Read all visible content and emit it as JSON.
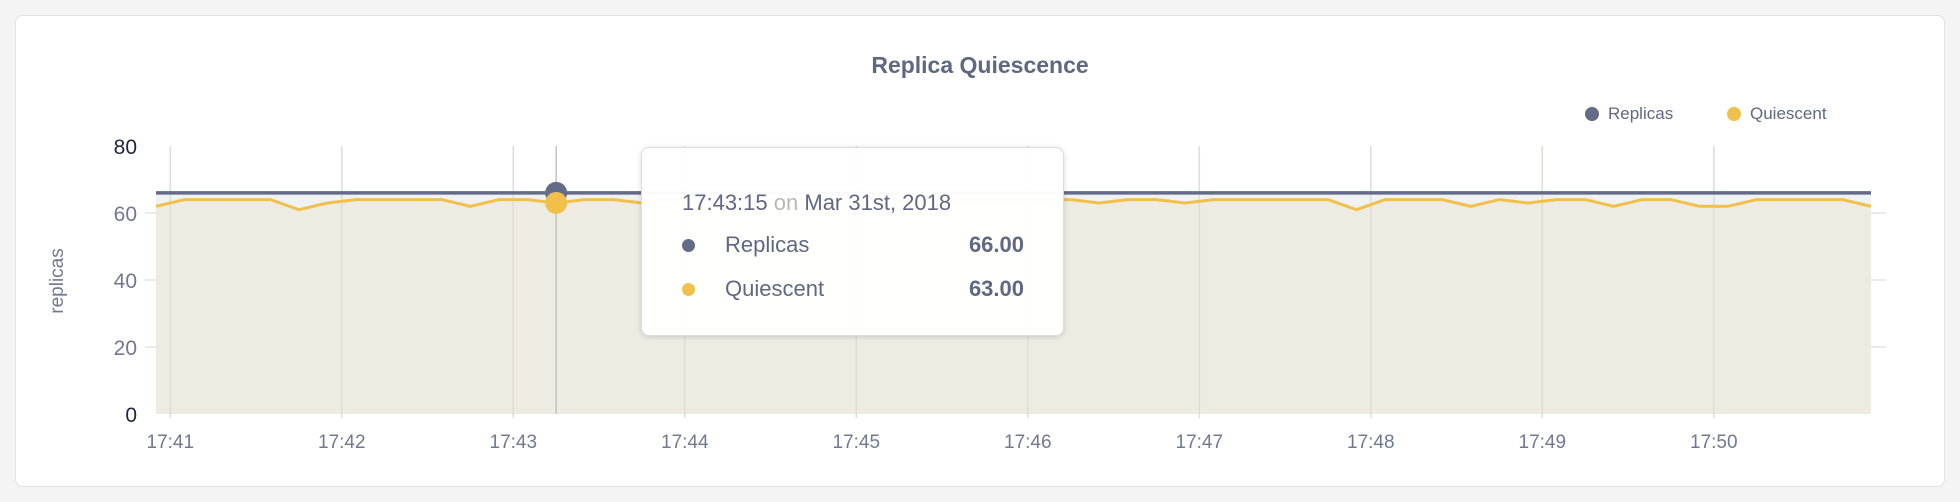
{
  "chart_data": {
    "type": "area",
    "title": "Replica Quiescence",
    "ylabel": "replicas",
    "xlabel": "",
    "ylim": [
      0,
      80
    ],
    "yticks": [
      "0",
      "20",
      "40",
      "60",
      "80"
    ],
    "xticks": [
      "17:41",
      "17:42",
      "17:43",
      "17:44",
      "17:45",
      "17:46",
      "17:47",
      "17:48",
      "17:49",
      "17:50"
    ],
    "x_start": "17:40:55",
    "x_step_seconds": 10,
    "grid": true,
    "legend_position": "top-right",
    "series": [
      {
        "name": "Replicas",
        "color": "#636b86",
        "values": [
          66,
          66,
          66,
          66,
          66,
          66,
          66,
          66,
          66,
          66,
          66,
          66,
          66,
          66,
          66,
          66,
          66,
          66,
          66,
          66,
          66,
          66,
          66,
          66,
          66,
          66,
          66,
          66,
          66,
          66,
          66,
          66,
          66,
          66,
          66,
          66,
          66,
          66,
          66,
          66,
          66,
          66,
          66,
          66,
          66,
          66,
          66,
          66,
          66,
          66,
          66,
          66,
          66,
          66,
          66,
          66,
          66,
          66,
          66,
          66,
          66
        ]
      },
      {
        "name": "Quiescent",
        "color": "#f0c04a",
        "values": [
          62,
          64,
          64,
          64,
          64,
          61,
          63,
          64,
          64,
          64,
          64,
          62,
          64,
          64,
          63,
          64,
          64,
          63,
          64,
          64,
          64,
          64,
          64,
          64,
          64,
          64,
          64,
          64,
          64,
          64,
          64,
          64,
          64,
          63,
          64,
          64,
          63,
          64,
          64,
          64,
          64,
          64,
          61,
          64,
          64,
          64,
          62,
          64,
          63,
          64,
          64,
          62,
          64,
          64,
          62,
          62,
          64,
          64,
          64,
          64,
          62
        ]
      }
    ],
    "tooltip": {
      "time": "17:43:15",
      "on": "on",
      "date": "Mar 31st, 2018",
      "hover_index": 14,
      "rows": [
        {
          "name": "Replicas",
          "value": "66.00"
        },
        {
          "name": "Quiescent",
          "value": "63.00"
        }
      ]
    }
  }
}
